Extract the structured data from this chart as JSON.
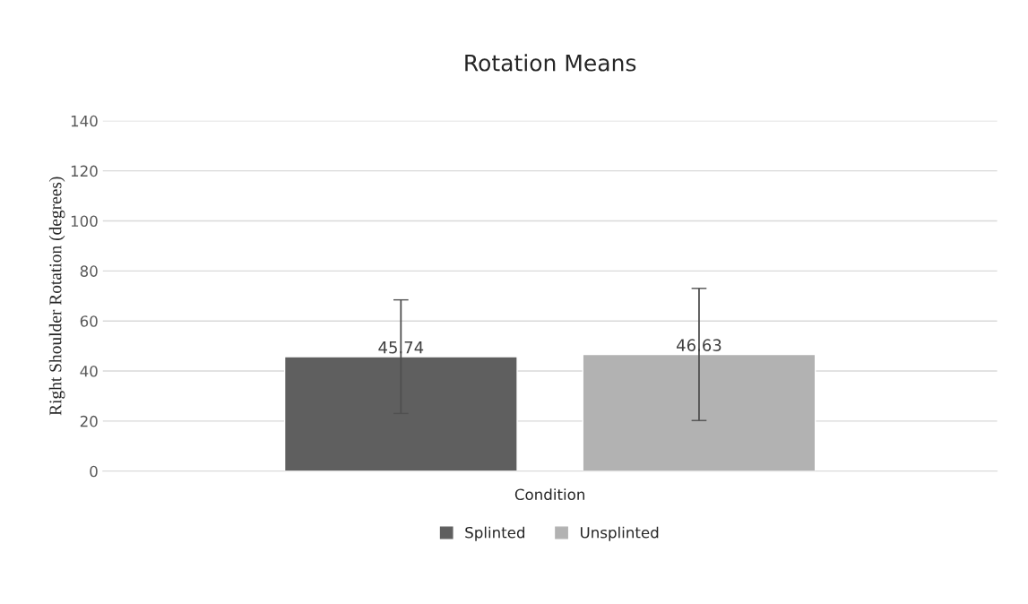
{
  "chart_data": {
    "type": "bar",
    "title": "Rotation Means",
    "ylabel": "Right Shoulder Rotation (degrees)",
    "categories": [
      "Condition"
    ],
    "series": [
      {
        "name": "Splinted",
        "color": "#5f5f5f",
        "values": [
          45.74
        ],
        "errors": [
          22.7
        ]
      },
      {
        "name": "Unsplinted",
        "color": "#b2b2b2",
        "values": [
          46.63
        ],
        "errors": [
          26.4
        ]
      }
    ],
    "ylim": [
      0,
      140
    ],
    "yticks": [
      0,
      20,
      40,
      60,
      80,
      100,
      120,
      140
    ],
    "grid": "y",
    "legend": "bottom",
    "data_labels": true
  }
}
